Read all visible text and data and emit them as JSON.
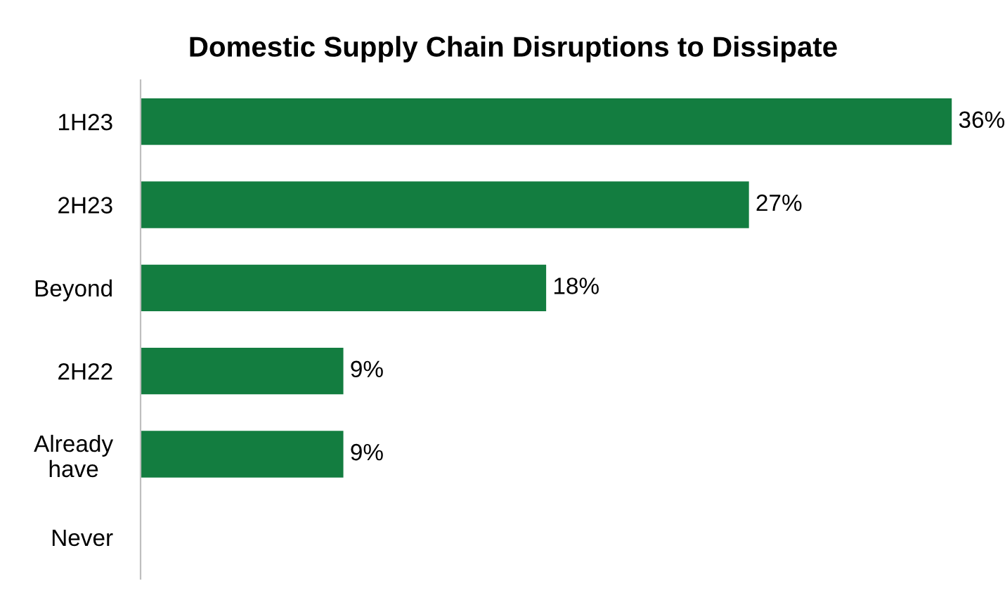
{
  "chart_data": {
    "type": "bar",
    "orientation": "horizontal",
    "title": "Domestic Supply Chain Disruptions to Dissipate",
    "categories": [
      "1H23",
      "2H23",
      "Beyond",
      "2H22",
      "Already\nhave",
      "Never"
    ],
    "values": [
      36,
      27,
      18,
      9,
      9,
      null
    ],
    "value_labels": [
      "36%",
      "27%",
      "18%",
      "9%",
      "9%",
      null
    ],
    "color": "#137d40",
    "tick_labels": "y",
    "grid": false,
    "legend": false
  }
}
